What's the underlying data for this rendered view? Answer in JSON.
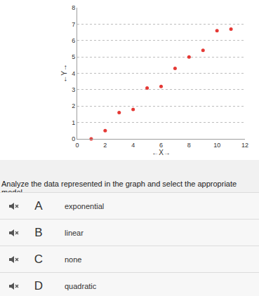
{
  "chart_data": {
    "type": "scatter",
    "x": [
      1,
      2,
      3,
      4,
      5,
      6,
      7,
      8,
      9,
      10,
      11
    ],
    "values": [
      0,
      0.5,
      1.6,
      1.8,
      3.1,
      3.2,
      4.3,
      5,
      5.4,
      6.6,
      6.7
    ],
    "xlim": [
      0,
      12
    ],
    "ylim": [
      0,
      8
    ],
    "xticks": [
      0,
      2,
      4,
      6,
      8,
      10,
      12
    ],
    "yticks": [
      0,
      1,
      2,
      3,
      4,
      5,
      6,
      7,
      8
    ],
    "x_label": "←X→",
    "y_label": "←Y→",
    "color": "#e53935",
    "marker": "circle",
    "grid": true
  },
  "question": "Analyze the data represented in the graph and select the appropriate model.",
  "options": [
    {
      "letter": "A",
      "text": "exponential"
    },
    {
      "letter": "B",
      "text": "linear"
    },
    {
      "letter": "C",
      "text": "none"
    },
    {
      "letter": "D",
      "text": "quadratic"
    }
  ]
}
